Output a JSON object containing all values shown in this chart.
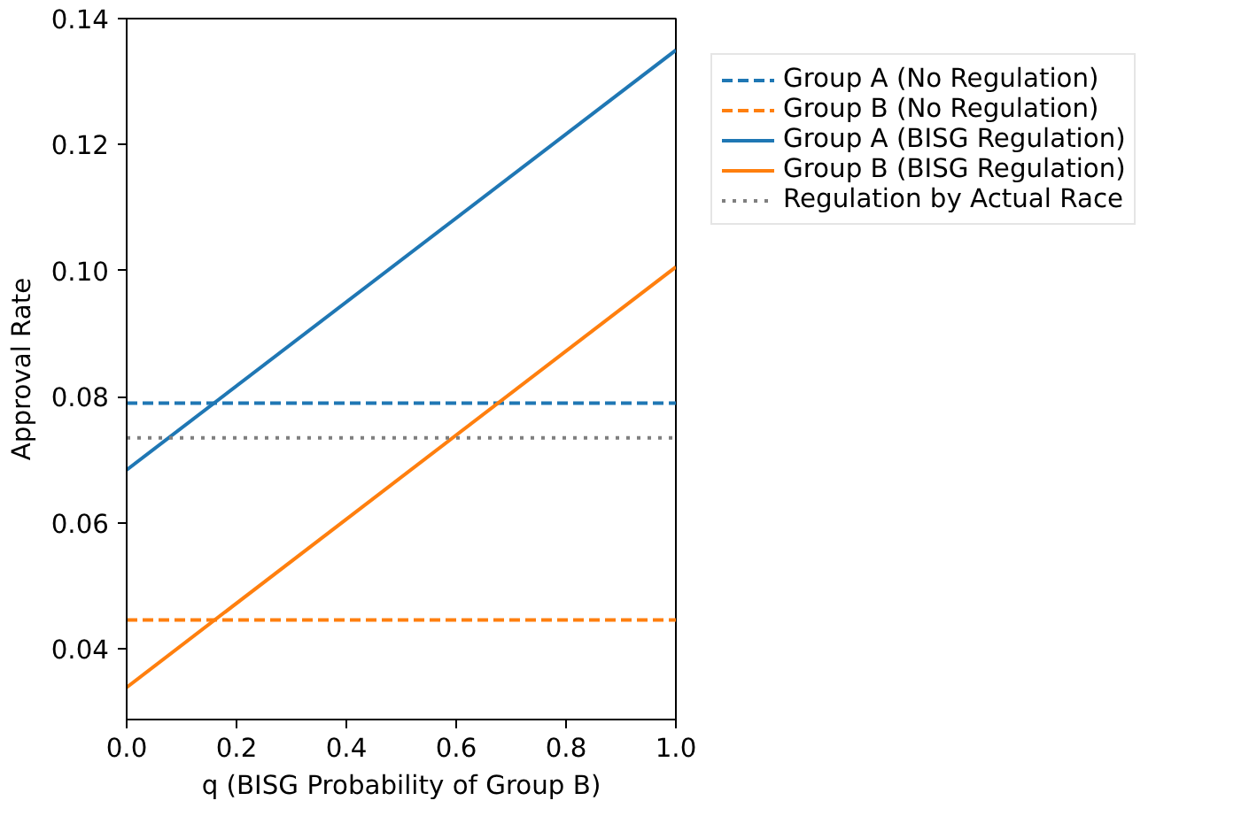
{
  "chart_data": {
    "type": "line",
    "xlabel": "q (BISG Probability of Group B)",
    "ylabel": "Approval Rate",
    "xlim": [
      0,
      1
    ],
    "ylim": [
      0.0288,
      0.14
    ],
    "xticks": [
      {
        "value": 0,
        "label": "0.0"
      },
      {
        "value": 0.2,
        "label": "0.2"
      },
      {
        "value": 0.4,
        "label": "0.4"
      },
      {
        "value": 0.6,
        "label": "0.6"
      },
      {
        "value": 0.8,
        "label": "0.8"
      },
      {
        "value": 1,
        "label": "1.0"
      }
    ],
    "yticks": [
      0.04,
      0.06,
      {
        "value": 0.08,
        "label": "0.08"
      },
      {
        "value": 0.1,
        "label": "0.10"
      },
      {
        "value": 0.12,
        "label": "0.12"
      },
      0.14
    ],
    "x": [
      0,
      1
    ],
    "grid": false,
    "legend": "right",
    "marker": "none",
    "series": [
      {
        "name": "Group A (No Regulation)",
        "color": "#1f77b4",
        "line_style": "dashed",
        "values": [
          0.079,
          0.079
        ]
      },
      {
        "name": "Group B (No Regulation)",
        "color": "#ff7f0e",
        "line_style": "dashed",
        "values": [
          0.0446,
          0.0446
        ]
      },
      {
        "name": "Group A (BISG Regulation)",
        "color": "#1f77b4",
        "line_style": "solid",
        "values": [
          0.0684,
          0.135
        ]
      },
      {
        "name": "Group B (BISG Regulation)",
        "color": "#ff7f0e",
        "line_style": "solid",
        "values": [
          0.0339,
          0.1006
        ]
      },
      {
        "name": "Regulation by Actual Race",
        "color": "#7f7f7f",
        "line_style": "dotted",
        "values": [
          0.0735,
          0.0735
        ]
      }
    ]
  }
}
